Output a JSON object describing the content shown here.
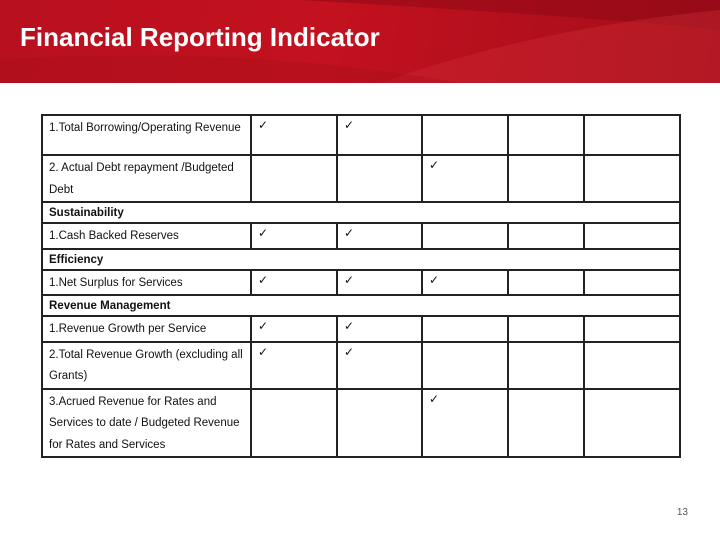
{
  "slide": {
    "title": "Financial Reporting Indicator",
    "page_number": "13",
    "accent_color": "#c3111f"
  },
  "table": {
    "check_mark": "✓",
    "rows": [
      {
        "type": "item",
        "label": "1.Total Borrowing/Operating Revenue",
        "checks": [
          true,
          true,
          false,
          false,
          false
        ]
      },
      {
        "type": "item",
        "label": "2. Actual Debt repayment /Budgeted Debt",
        "checks": [
          false,
          false,
          true,
          false,
          false
        ]
      },
      {
        "type": "section",
        "label": "Sustainability"
      },
      {
        "type": "item",
        "label": "1.Cash Backed Reserves",
        "checks": [
          true,
          true,
          false,
          false,
          false
        ]
      },
      {
        "type": "section",
        "label": "Efficiency"
      },
      {
        "type": "item",
        "label": "1.Net Surplus for Services",
        "checks": [
          true,
          true,
          true,
          false,
          false
        ]
      },
      {
        "type": "section",
        "label": "Revenue Management"
      },
      {
        "type": "item",
        "label": "1.Revenue Growth per Service",
        "checks": [
          true,
          true,
          false,
          false,
          false
        ]
      },
      {
        "type": "item",
        "label": "2.Total Revenue Growth (excluding all Grants)",
        "checks": [
          true,
          true,
          false,
          false,
          false
        ]
      },
      {
        "type": "item",
        "label": "3.Acrued Revenue for Rates and Services to date / Budgeted Revenue for Rates and Services",
        "checks": [
          false,
          false,
          true,
          false,
          false
        ]
      }
    ]
  }
}
